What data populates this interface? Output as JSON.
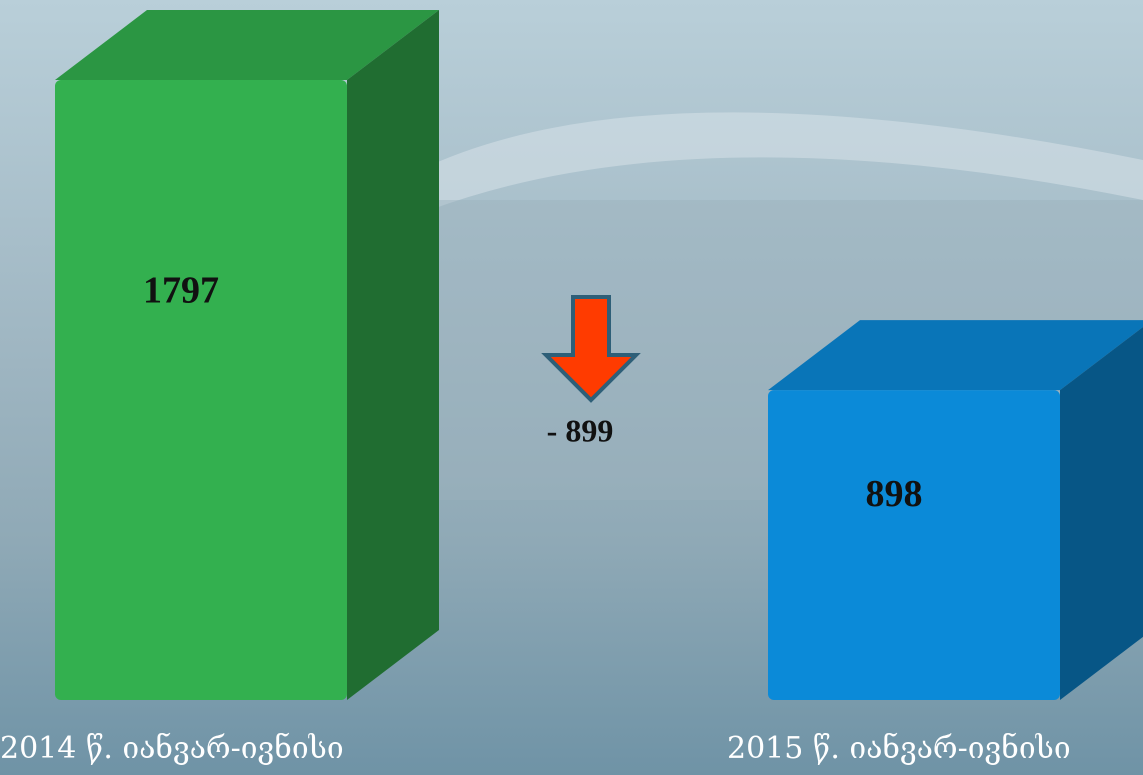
{
  "chart_data": {
    "type": "bar3d",
    "categories": [
      "2014 წ. იანვარ-ივნისი",
      "2015 წ. იანვარ-ივნისი"
    ],
    "values": [
      1797,
      898
    ],
    "colors": [
      "#33b04f",
      "#0b8ad8"
    ],
    "annotation": "- 899",
    "annotation_color": "#ff3b00"
  }
}
